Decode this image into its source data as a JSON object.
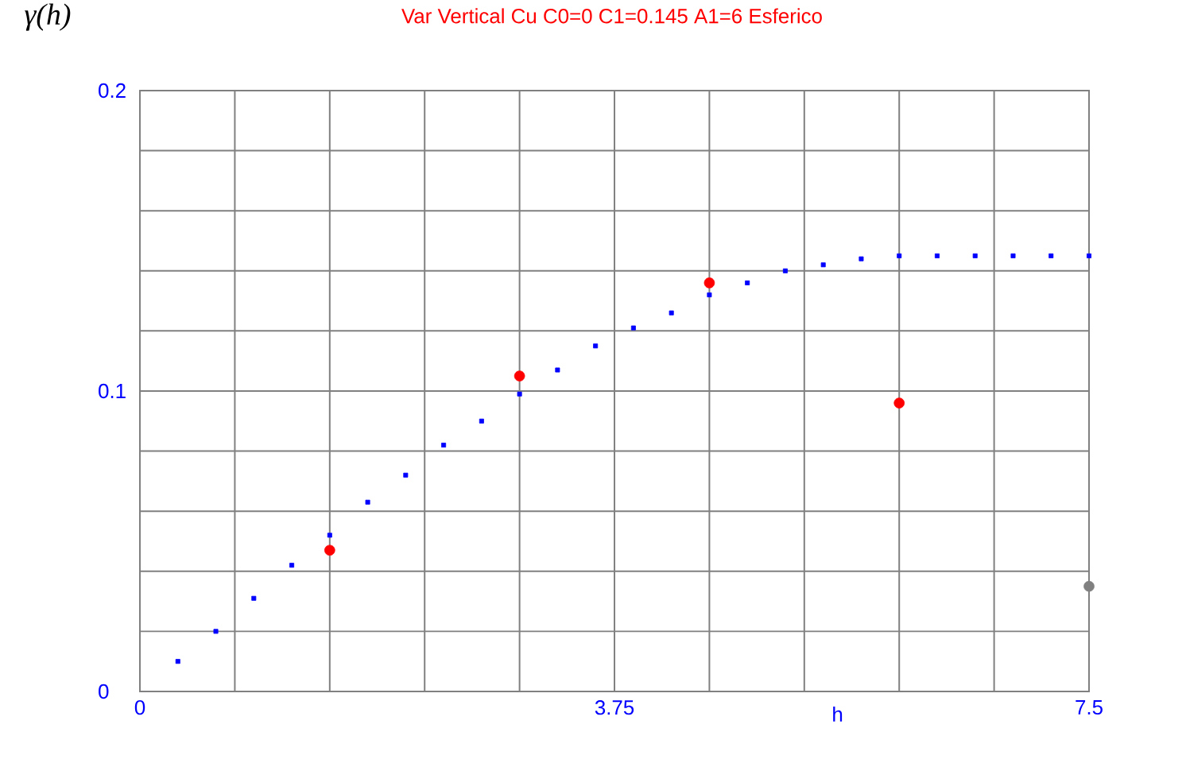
{
  "chart_data": {
    "type": "scatter",
    "title": "Var Vertical Cu C0=0 C1=0.145 A1=6 Esferico",
    "xlabel": "h",
    "ylabel": "γ(h)",
    "xlim": [
      0,
      7.5
    ],
    "ylim": [
      0,
      0.2
    ],
    "xticks": [
      0,
      {
        "value": 0.75,
        "label": null
      },
      {
        "value": 1.5,
        "label": null
      },
      {
        "value": 2.25,
        "label": null
      },
      {
        "value": 3.0,
        "label": null
      },
      3.75,
      {
        "value": 4.5,
        "label": null
      },
      {
        "value": 5.25,
        "label": null
      },
      {
        "value": 6.0,
        "label": null
      },
      {
        "value": 6.75,
        "label": null
      },
      7.5
    ],
    "yticks": [
      0,
      {
        "value": 0.02,
        "label": null
      },
      {
        "value": 0.04,
        "label": null
      },
      {
        "value": 0.06,
        "label": null
      },
      {
        "value": 0.08,
        "label": null
      },
      0.1,
      {
        "value": 0.12,
        "label": null
      },
      {
        "value": 0.14,
        "label": null
      },
      {
        "value": 0.16,
        "label": null
      },
      {
        "value": 0.18,
        "label": null
      },
      0.2
    ],
    "grid": true,
    "series": [
      {
        "color": "#0000ff",
        "marker": "square",
        "x": [
          0.3,
          0.6,
          0.9,
          1.2,
          1.5,
          1.8,
          2.1,
          2.4,
          2.7,
          3.0,
          3.3,
          3.6,
          3.9,
          4.2,
          4.5,
          4.8,
          5.1,
          5.4,
          5.7,
          6.0,
          6.3,
          6.6,
          6.9,
          7.2,
          7.5
        ],
        "values": [
          0.01,
          0.02,
          0.031,
          0.042,
          0.052,
          0.063,
          0.072,
          0.082,
          0.09,
          0.099,
          0.107,
          0.115,
          0.121,
          0.126,
          0.132,
          0.136,
          0.14,
          0.142,
          0.144,
          0.145,
          0.145,
          0.145,
          0.145,
          0.145,
          0.145
        ]
      },
      {
        "color": "#ff0000",
        "marker": "circle",
        "x": [
          1.5,
          3.0,
          4.5,
          6.0
        ],
        "values": [
          0.047,
          0.105,
          0.136,
          0.096
        ]
      },
      {
        "color": "#808080",
        "marker": "circle",
        "x": [
          7.5
        ],
        "values": [
          0.035
        ]
      }
    ]
  }
}
